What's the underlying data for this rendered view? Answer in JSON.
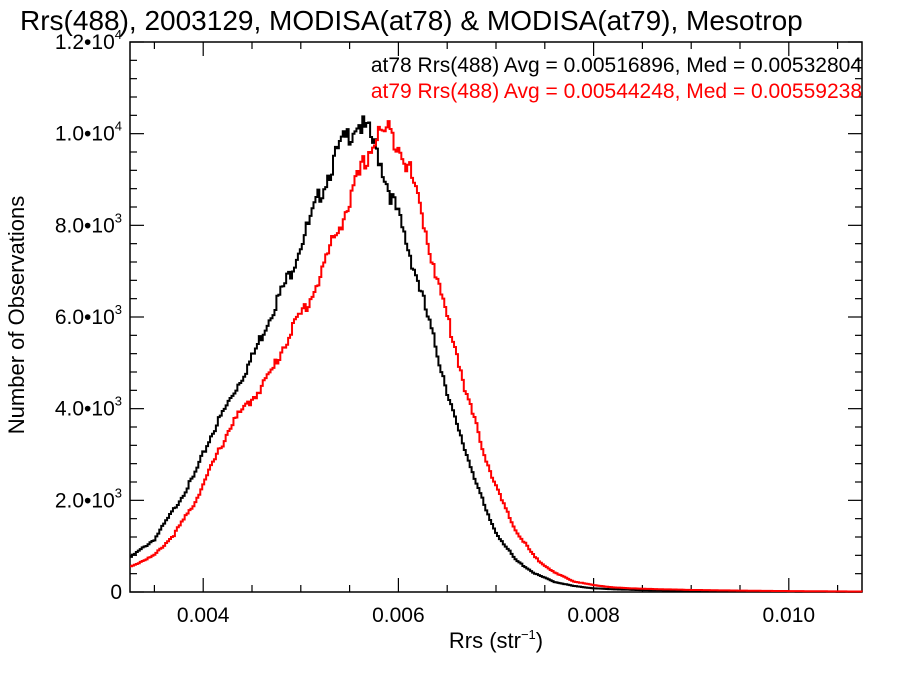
{
  "chart_data": {
    "type": "line",
    "title": "Rrs(488), 2003129, MODISA(at78) & MODISA(at79), Mesotrop",
    "xlabel": "Rrs (str",
    "xlabel_sup": "−1",
    "xlabel_close": ")",
    "ylabel": "Number of Observations",
    "xlim": [
      0.00325,
      0.01075
    ],
    "ylim": [
      0,
      12000
    ],
    "xticks": [
      {
        "value": 0.004,
        "label": "0.004"
      },
      {
        "value": 0.006,
        "label": "0.006"
      },
      {
        "value": 0.008,
        "label": "0.008"
      },
      {
        "value": 0.01,
        "label": "0.010"
      }
    ],
    "yticks": [
      {
        "value": 0,
        "mant": "0",
        "exp": ""
      },
      {
        "value": 2000,
        "mant": "2.0•10",
        "exp": "3"
      },
      {
        "value": 4000,
        "mant": "4.0•10",
        "exp": "3"
      },
      {
        "value": 6000,
        "mant": "6.0•10",
        "exp": "3"
      },
      {
        "value": 8000,
        "mant": "8.0•10",
        "exp": "3"
      },
      {
        "value": 10000,
        "mant": "1.0•10",
        "exp": "4"
      },
      {
        "value": 12000,
        "mant": "1.2•10",
        "exp": "4"
      }
    ],
    "grid": false,
    "step": true,
    "series": [
      {
        "name": "at78",
        "color": "#000000",
        "annotation": "at78 Rrs(488) Avg = 0.00516896, Med = 0.00532804",
        "x": [
          0.00325,
          0.0035,
          0.0037,
          0.0039,
          0.0041,
          0.0043,
          0.0045,
          0.0047,
          0.0049,
          0.005,
          0.0051,
          0.0052,
          0.0053,
          0.0054,
          0.0055,
          0.00558,
          0.0057,
          0.0058,
          0.0059,
          0.006,
          0.0061,
          0.0062,
          0.0063,
          0.0064,
          0.0065,
          0.0066,
          0.0067,
          0.0068,
          0.0069,
          0.007,
          0.0072,
          0.0074,
          0.0076,
          0.0078,
          0.008,
          0.0082,
          0.0085,
          0.009,
          0.0095,
          0.01,
          0.01075
        ],
        "y": [
          750,
          1150,
          1800,
          2500,
          3500,
          4300,
          5100,
          6100,
          7000,
          7600,
          8100,
          8700,
          9200,
          9700,
          10000,
          10250,
          10000,
          9500,
          8800,
          8200,
          7500,
          6800,
          6000,
          5200,
          4400,
          3600,
          3000,
          2400,
          1750,
          1300,
          700,
          400,
          220,
          130,
          80,
          60,
          40,
          25,
          15,
          10,
          5
        ]
      },
      {
        "name": "at79",
        "color": "#ff0000",
        "annotation": "at79 Rrs(488) Avg = 0.00544248, Med = 0.00559238",
        "x": [
          0.00325,
          0.0035,
          0.0037,
          0.0039,
          0.0041,
          0.0043,
          0.0045,
          0.0047,
          0.0049,
          0.0051,
          0.0052,
          0.0053,
          0.0054,
          0.0055,
          0.0056,
          0.0057,
          0.0058,
          0.0059,
          0.006,
          0.0061,
          0.0062,
          0.0063,
          0.0064,
          0.0065,
          0.0066,
          0.0067,
          0.0068,
          0.0069,
          0.007,
          0.0071,
          0.0072,
          0.0074,
          0.0076,
          0.0078,
          0.008,
          0.0082,
          0.0085,
          0.009,
          0.0095,
          0.01,
          0.01075
        ],
        "y": [
          550,
          800,
          1250,
          1900,
          2800,
          3700,
          4200,
          4800,
          5700,
          6400,
          6900,
          7500,
          8000,
          8500,
          9100,
          9600,
          10000,
          10050,
          9800,
          9300,
          8600,
          7700,
          6800,
          6000,
          5200,
          4300,
          3600,
          2900,
          2300,
          1800,
          1350,
          750,
          420,
          230,
          150,
          100,
          70,
          45,
          30,
          20,
          10
        ]
      }
    ]
  }
}
